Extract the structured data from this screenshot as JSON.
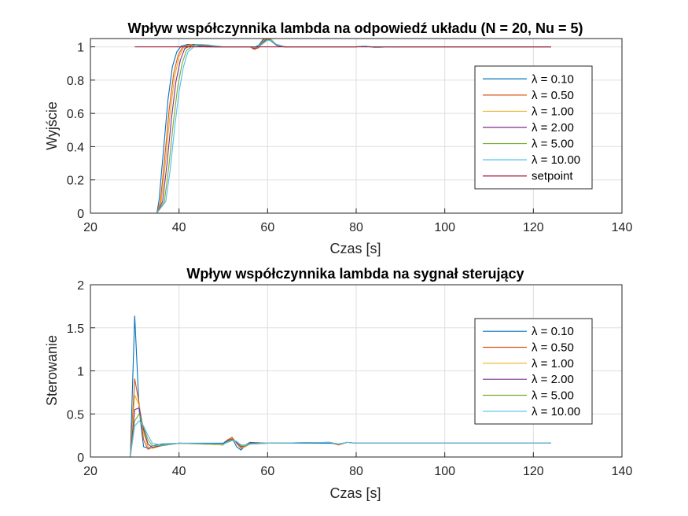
{
  "chart_data": [
    {
      "type": "line",
      "title": "Wpływ współczynnika lambda na odpowiedź układu (N = 20, Nu = 5)",
      "xlabel": "Czas [s]",
      "ylabel": "Wyjście",
      "xlim": [
        20,
        140
      ],
      "ylim": [
        0,
        1.05
      ],
      "xticks": [
        "20",
        "40",
        "60",
        "80",
        "100",
        "120",
        "140"
      ],
      "yticks": [
        "0",
        "0.2",
        "0.4",
        "0.6",
        "0.8",
        "1"
      ],
      "grid": true,
      "legend_position": "right",
      "series": [
        {
          "name": "λ = 0.10",
          "color": "#0072BD",
          "x": [
            30,
            35,
            35.5,
            36.5,
            37.5,
            38.5,
            39.5,
            40.5,
            42,
            44,
            46,
            56,
            57,
            58,
            59,
            60,
            61,
            62,
            64,
            66,
            70,
            80,
            82,
            84,
            90,
            124
          ],
          "y": [
            0,
            0,
            0.08,
            0.38,
            0.68,
            0.88,
            0.97,
            1.005,
            1.015,
            1.008,
            1.0,
            1.0,
            0.995,
            1.01,
            1.045,
            1.05,
            1.03,
            1.01,
            1.0,
            1.0,
            1.0,
            1.0,
            1.005,
            0.997,
            1.0,
            1.0
          ]
        },
        {
          "name": "λ = 0.50",
          "color": "#D95319",
          "x": [
            30,
            35,
            35.8,
            36.8,
            37.8,
            38.8,
            39.8,
            40.8,
            42.5,
            44.5,
            47,
            56,
            57,
            58,
            59,
            60,
            61,
            62,
            64,
            66,
            70,
            80,
            82,
            84,
            90,
            124
          ],
          "y": [
            0,
            0,
            0.07,
            0.34,
            0.63,
            0.84,
            0.95,
            0.998,
            1.015,
            1.01,
            1.0,
            1.0,
            0.985,
            0.995,
            1.04,
            1.06,
            1.04,
            1.01,
            0.998,
            1.0,
            1.0,
            1.0,
            1.005,
            0.997,
            1.0,
            1.0
          ]
        },
        {
          "name": "λ = 1.00",
          "color": "#EDB120",
          "x": [
            30,
            35,
            36,
            37,
            38,
            39,
            40,
            41,
            43,
            45,
            48,
            56,
            57,
            58,
            59,
            60,
            61,
            62,
            64,
            66,
            70,
            80,
            82,
            84,
            90,
            124
          ],
          "y": [
            0,
            0,
            0.07,
            0.32,
            0.6,
            0.82,
            0.94,
            0.995,
            1.015,
            1.01,
            1.0,
            1.0,
            0.99,
            1.0,
            1.035,
            1.055,
            1.04,
            1.01,
            1.0,
            1.0,
            1.0,
            1.0,
            1.005,
            0.997,
            1.0,
            1.0
          ]
        },
        {
          "name": "λ = 2.00",
          "color": "#7E2F8E",
          "x": [
            30,
            35,
            36.3,
            37.3,
            38.3,
            39.3,
            40.3,
            41.3,
            43.3,
            45.5,
            48,
            56,
            57,
            58,
            59,
            60,
            61,
            62,
            64,
            66,
            70,
            80,
            82,
            84,
            90,
            124
          ],
          "y": [
            0,
            0,
            0.07,
            0.3,
            0.57,
            0.79,
            0.92,
            0.99,
            1.015,
            1.01,
            1.0,
            1.0,
            0.99,
            1.0,
            1.03,
            1.05,
            1.035,
            1.01,
            1.0,
            1.0,
            1.0,
            1.0,
            1.005,
            0.997,
            1.0,
            1.0
          ]
        },
        {
          "name": "λ = 5.00",
          "color": "#77AC30",
          "x": [
            30,
            35,
            36.7,
            37.7,
            38.7,
            39.7,
            40.7,
            41.7,
            43.7,
            46,
            49,
            56,
            57,
            58,
            59,
            60,
            61,
            62,
            64,
            66,
            70,
            80,
            82,
            84,
            90,
            124
          ],
          "y": [
            0,
            0,
            0.07,
            0.28,
            0.54,
            0.76,
            0.9,
            0.98,
            1.015,
            1.012,
            1.0,
            1.0,
            0.995,
            1.0,
            1.025,
            1.045,
            1.035,
            1.015,
            1.0,
            1.0,
            1.0,
            1.0,
            1.005,
            0.997,
            1.0,
            1.0
          ]
        },
        {
          "name": "λ = 10.00",
          "color": "#4DBEEE",
          "x": [
            30,
            35,
            37,
            38,
            39,
            40,
            41,
            42,
            44,
            46.5,
            50,
            56,
            57,
            58,
            59,
            60,
            61,
            62,
            64,
            66,
            70,
            80,
            82,
            84,
            90,
            124
          ],
          "y": [
            0,
            0,
            0.07,
            0.26,
            0.51,
            0.73,
            0.88,
            0.97,
            1.015,
            1.012,
            1.0,
            1.0,
            0.997,
            1.0,
            1.02,
            1.04,
            1.035,
            1.015,
            1.0,
            1.0,
            1.0,
            1.0,
            1.005,
            0.997,
            1.0,
            1.0
          ]
        },
        {
          "name": "setpoint",
          "color": "#A2142F",
          "x": [
            30,
            124
          ],
          "y": [
            1,
            1
          ]
        }
      ]
    },
    {
      "type": "line",
      "title": "Wpływ współczynnika lambda na sygnał sterujący",
      "xlabel": "Czas [s]",
      "ylabel": "Sterowanie",
      "xlim": [
        20,
        140
      ],
      "ylim": [
        0,
        2
      ],
      "xticks": [
        "20",
        "40",
        "60",
        "80",
        "100",
        "120",
        "140"
      ],
      "yticks": [
        "0",
        "0.5",
        "1",
        "1.5",
        "2"
      ],
      "grid": true,
      "legend_position": "right",
      "series": [
        {
          "name": "λ = 0.10",
          "color": "#0072BD",
          "x": [
            29,
            30,
            31,
            32,
            33,
            34,
            36,
            40,
            50,
            51,
            52,
            53,
            54,
            55,
            56,
            60,
            74,
            76,
            78,
            80,
            100,
            124
          ],
          "y": [
            0,
            1.64,
            0.55,
            0.12,
            0.1,
            0.13,
            0.15,
            0.16,
            0.16,
            0.2,
            0.22,
            0.12,
            0.08,
            0.14,
            0.17,
            0.16,
            0.16,
            0.15,
            0.17,
            0.16,
            0.16,
            0.16
          ]
        },
        {
          "name": "λ = 0.50",
          "color": "#D95319",
          "x": [
            29,
            30,
            31,
            32,
            33,
            34,
            36,
            40,
            50,
            51,
            52,
            53,
            54,
            55,
            56,
            60,
            74,
            76,
            78,
            80,
            100,
            124
          ],
          "y": [
            0,
            0.91,
            0.62,
            0.2,
            0.09,
            0.11,
            0.14,
            0.16,
            0.14,
            0.2,
            0.23,
            0.16,
            0.1,
            0.12,
            0.16,
            0.16,
            0.17,
            0.14,
            0.17,
            0.16,
            0.16,
            0.16
          ]
        },
        {
          "name": "λ = 1.00",
          "color": "#EDB120",
          "x": [
            29,
            30,
            31,
            32,
            33,
            34,
            36,
            40,
            50,
            51,
            52,
            53,
            54,
            55,
            56,
            60,
            74,
            76,
            78,
            80,
            100,
            124
          ],
          "y": [
            0,
            0.72,
            0.6,
            0.28,
            0.12,
            0.1,
            0.13,
            0.16,
            0.14,
            0.19,
            0.22,
            0.17,
            0.11,
            0.12,
            0.15,
            0.16,
            0.17,
            0.15,
            0.17,
            0.16,
            0.16,
            0.16
          ]
        },
        {
          "name": "λ = 2.00",
          "color": "#7E2F8E",
          "x": [
            29,
            30,
            31,
            32,
            33,
            34,
            36,
            40,
            50,
            51,
            52,
            53,
            54,
            55,
            56,
            60,
            74,
            76,
            78,
            80,
            100,
            124
          ],
          "y": [
            0,
            0.55,
            0.57,
            0.32,
            0.15,
            0.11,
            0.13,
            0.16,
            0.15,
            0.19,
            0.21,
            0.17,
            0.12,
            0.13,
            0.15,
            0.16,
            0.17,
            0.15,
            0.17,
            0.16,
            0.16,
            0.16
          ]
        },
        {
          "name": "λ = 5.00",
          "color": "#77AC30",
          "x": [
            29,
            30,
            31,
            32,
            33,
            34,
            36,
            40,
            50,
            51,
            52,
            53,
            54,
            55,
            56,
            60,
            74,
            76,
            78,
            80,
            100,
            124
          ],
          "y": [
            0,
            0.42,
            0.5,
            0.35,
            0.2,
            0.13,
            0.13,
            0.16,
            0.15,
            0.18,
            0.2,
            0.18,
            0.13,
            0.13,
            0.15,
            0.16,
            0.17,
            0.15,
            0.17,
            0.16,
            0.16,
            0.16
          ]
        },
        {
          "name": "λ = 10.00",
          "color": "#4DBEEE",
          "x": [
            29,
            30,
            31,
            32,
            33,
            34,
            36,
            40,
            50,
            51,
            52,
            53,
            54,
            55,
            56,
            60,
            74,
            76,
            78,
            80,
            100,
            124
          ],
          "y": [
            0,
            0.36,
            0.42,
            0.36,
            0.25,
            0.16,
            0.14,
            0.16,
            0.15,
            0.17,
            0.19,
            0.18,
            0.14,
            0.14,
            0.15,
            0.16,
            0.17,
            0.15,
            0.17,
            0.16,
            0.16,
            0.16
          ]
        }
      ]
    }
  ]
}
